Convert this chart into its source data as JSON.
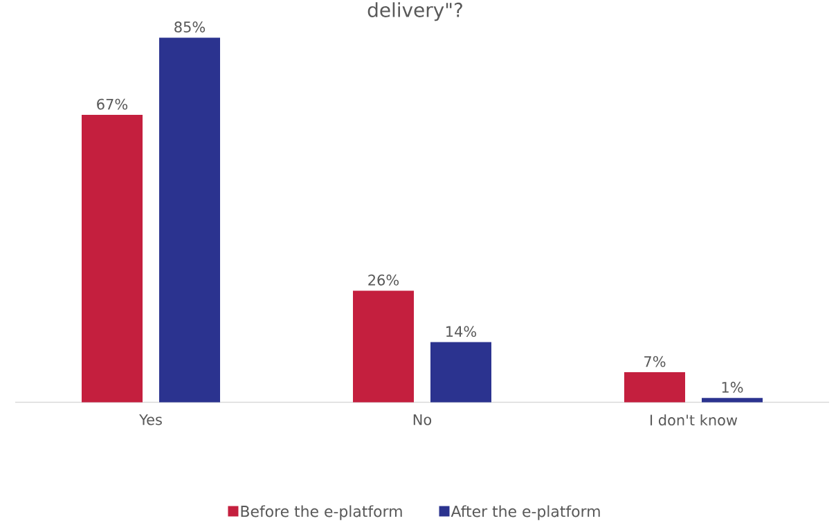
{
  "chart_data": {
    "type": "bar",
    "title": "delivery\"?",
    "categories": [
      "Yes",
      "No",
      "I don't know"
    ],
    "series": [
      {
        "name": "Before the e-platform",
        "color": "#c41f3e",
        "values": [
          67,
          26,
          7
        ],
        "value_labels": [
          "67%",
          "26%",
          "7%"
        ]
      },
      {
        "name": "After the e-platform",
        "color": "#2b338f",
        "values": [
          85,
          14,
          1
        ],
        "value_labels": [
          "85%",
          "14%",
          "1%"
        ]
      }
    ],
    "legend": "bottom",
    "grid": false
  }
}
